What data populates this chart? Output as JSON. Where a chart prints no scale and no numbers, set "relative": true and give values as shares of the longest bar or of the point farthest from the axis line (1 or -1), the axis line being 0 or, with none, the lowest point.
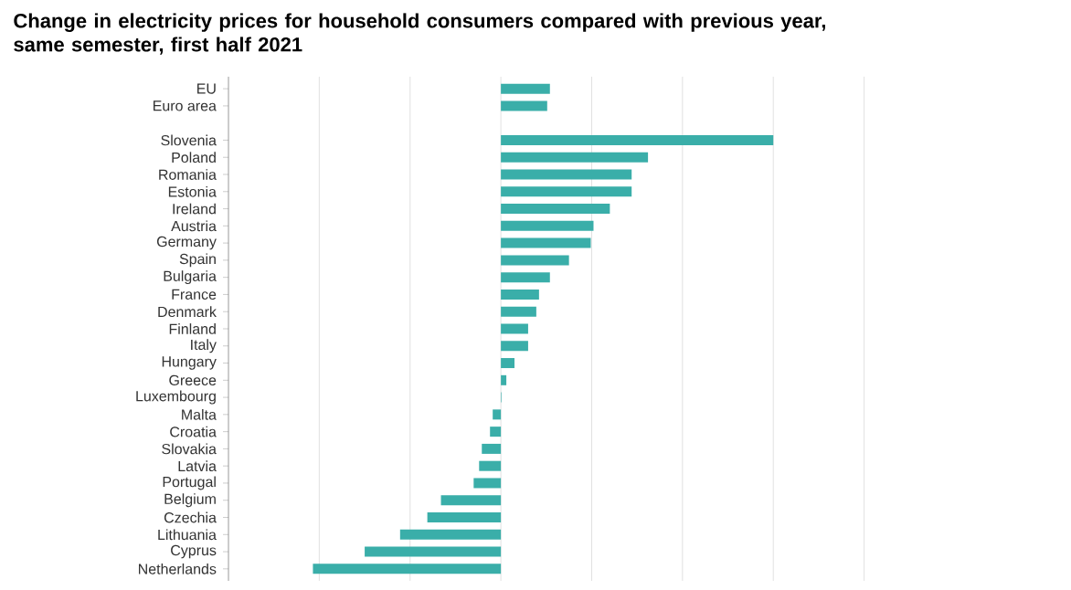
{
  "chart_data": {
    "type": "bar",
    "orientation": "horizontal",
    "relative": true,
    "grid": "x",
    "color": "#3aaea9",
    "title": "Change in electricity prices for household consumers compared with previous year, same semester, first half 2021",
    "categories": [
      "EU",
      "Euro area",
      null,
      "Slovenia",
      "Poland",
      "Romania",
      "Estonia",
      "Ireland",
      "Austria",
      "Germany",
      "Spain",
      "Bulgaria",
      "France",
      "Denmark",
      "Finland",
      "Italy",
      "Hungary",
      "Greece",
      "Luxembourg",
      "Malta",
      "Croatia",
      "Slovakia",
      "Latvia",
      "Portugal",
      "Belgium",
      "Czechia",
      "Lithuania",
      "Cyprus",
      "Netherlands"
    ],
    "values": [
      0.18,
      0.17,
      null,
      1,
      0.54,
      0.48,
      0.48,
      0.4,
      0.34,
      0.33,
      0.25,
      0.18,
      0.14,
      0.13,
      0.1,
      0.1,
      0.05,
      0.02,
      0.002,
      -0.03,
      -0.04,
      -0.07,
      -0.08,
      -0.1,
      -0.22,
      -0.27,
      -0.37,
      -0.5,
      -0.69
    ]
  }
}
